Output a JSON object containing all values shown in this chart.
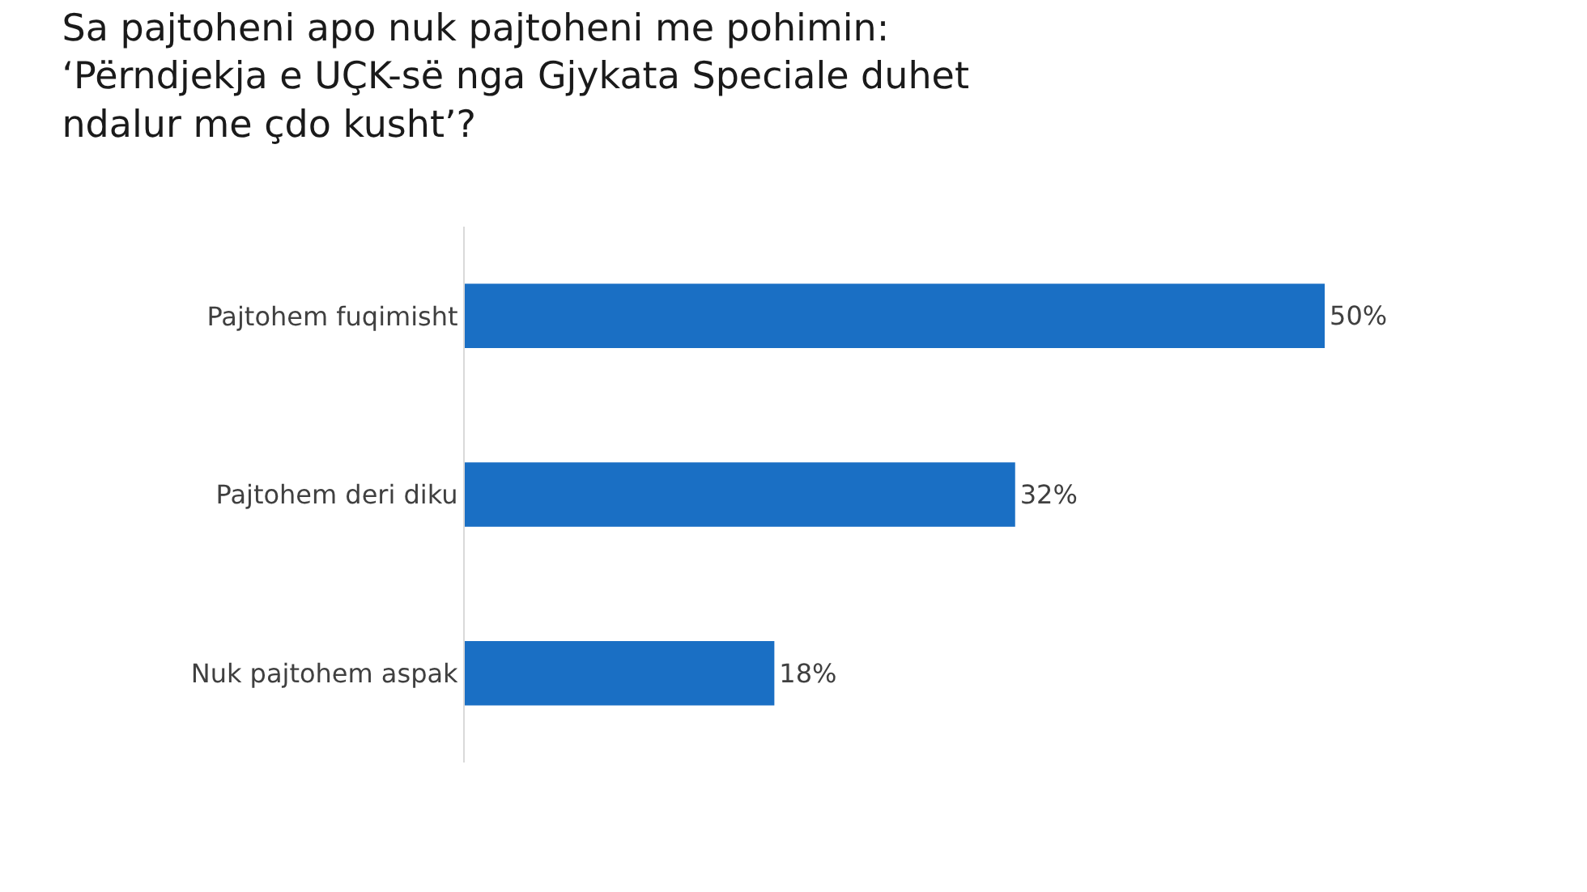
{
  "chart_data": {
    "type": "bar",
    "orientation": "horizontal",
    "title": "Sa pajtoheni apo nuk pajtoheni me pohimin:\n‘Përndjekja e UÇK-së nga Gjykata Speciale duhet\nndalur me çdo kusht’?",
    "categories": [
      "Pajtohem fuqimisht",
      "Pajtohem deri diku",
      "Nuk pajtohem aspak"
    ],
    "values": [
      50,
      32,
      18
    ],
    "value_labels": [
      "50%",
      "32%",
      "18%"
    ],
    "color": "#1a6fc4",
    "grid": false
  }
}
